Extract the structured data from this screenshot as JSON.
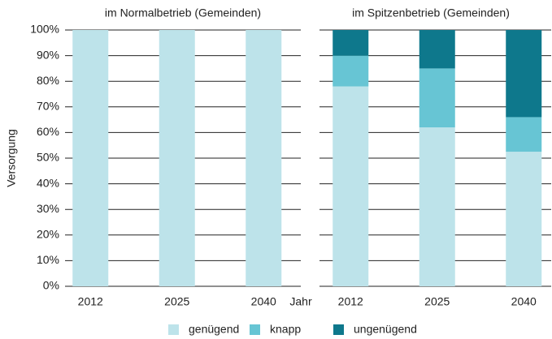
{
  "chart_data": {
    "type": "bar",
    "stacked": true,
    "ylabel": "Versorgung",
    "xlabel": "Jahr",
    "ylim": [
      0,
      100
    ],
    "yticks": [
      {
        "value": 0,
        "label": "0%"
      },
      {
        "value": 10,
        "label": "10%"
      },
      {
        "value": 20,
        "label": "20%"
      },
      {
        "value": 30,
        "label": "30%"
      },
      {
        "value": 40,
        "label": "40%"
      },
      {
        "value": 50,
        "label": "50%"
      },
      {
        "value": 60,
        "label": "60%"
      },
      {
        "value": 70,
        "label": "70%"
      },
      {
        "value": 80,
        "label": "80%"
      },
      {
        "value": 90,
        "label": "90%"
      },
      {
        "value": 100,
        "label": "100%"
      }
    ],
    "grid": true,
    "legend": "bottom",
    "series": [
      {
        "name": "genügend",
        "color": "#bde3ea"
      },
      {
        "name": "knapp",
        "color": "#67c5d4"
      },
      {
        "name": "ungenügend",
        "color": "#0e788c"
      }
    ],
    "panels": [
      {
        "title": "im Normalbetrieb (Gemeinden)",
        "categories": [
          "2012",
          "2025",
          "2040"
        ],
        "series": [
          {
            "values": [
              100,
              100,
              100
            ]
          }
        ]
      },
      {
        "title": "im Spitzenbetrieb (Gemeinden)",
        "categories": [
          "2012",
          "2025",
          "2040"
        ],
        "series": [
          {
            "values": [
              78,
              62,
              52.5
            ]
          },
          {
            "values": [
              12,
              23,
              13.5
            ]
          },
          {
            "values": [
              10,
              15,
              34
            ]
          }
        ]
      }
    ]
  }
}
